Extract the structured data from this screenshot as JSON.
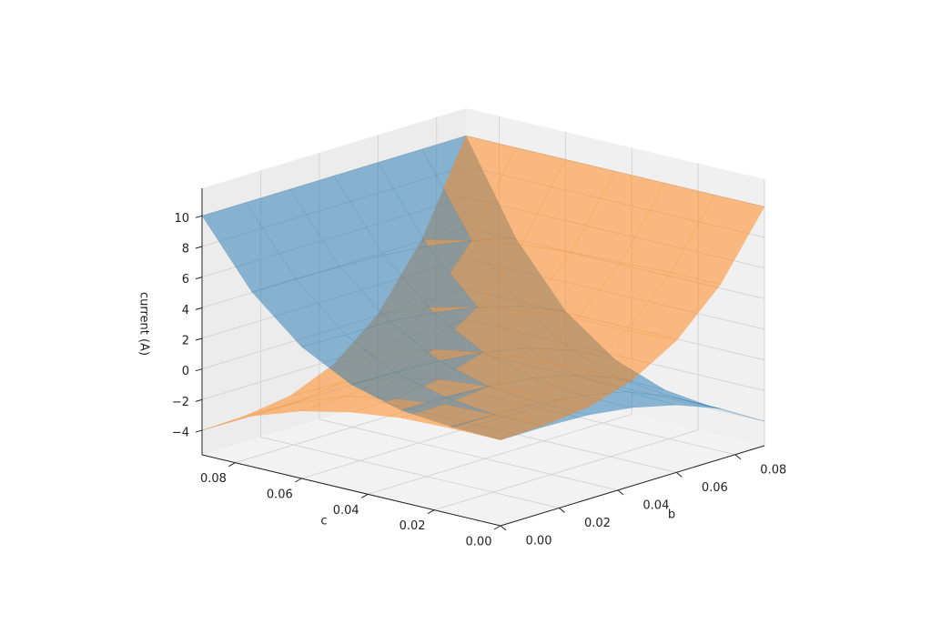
{
  "chart_data": {
    "type": "surface3d",
    "xlabel": "b",
    "ylabel": "c",
    "zlabel": "current (A)",
    "x": [
      0,
      0.015,
      0.03,
      0.045,
      0.06,
      0.075,
      0.09
    ],
    "y": [
      0,
      0.015,
      0.03,
      0.045,
      0.06,
      0.075,
      0.09
    ],
    "xlim": [
      0,
      0.09
    ],
    "ylim": [
      0,
      0.09
    ],
    "zlim": [
      -5.6,
      11.8
    ],
    "xticks": [
      {
        "value": 0,
        "label": "0.00"
      },
      {
        "value": 0.02,
        "label": "0.02"
      },
      {
        "value": 0.04,
        "label": "0.04"
      },
      {
        "value": 0.06,
        "label": "0.06"
      },
      {
        "value": 0.08,
        "label": "0.08"
      }
    ],
    "yticks": [
      {
        "value": 0,
        "label": "0.00"
      },
      {
        "value": 0.02,
        "label": "0.02"
      },
      {
        "value": 0.04,
        "label": "0.04"
      },
      {
        "value": 0.06,
        "label": "0.06"
      },
      {
        "value": 0.08,
        "label": "0.08"
      }
    ],
    "zticks": [
      {
        "value": -4,
        "label": "−4"
      },
      {
        "value": -2,
        "label": "−2"
      },
      0,
      2,
      4,
      6,
      8,
      10
    ],
    "grid": true,
    "series": [
      {
        "color": "#1f77b4",
        "values": [
          [
            0,
            0,
            -0.1,
            -0.5,
            -1.2,
            -2.3,
            -4
          ],
          [
            0.1,
            0,
            -0.1,
            -0.5,
            -1.1,
            -2.3,
            -3.9
          ],
          [
            0.4,
            0.4,
            0.2,
            -0.1,
            -0.8,
            -1.9,
            -3.5
          ],
          [
            1.3,
            1.2,
            1.1,
            0.8,
            0.2,
            -0.8,
            -2.3
          ],
          [
            3,
            2.9,
            2.9,
            2.6,
            2.1,
            1.3,
            0.1
          ],
          [
            5.8,
            5.8,
            5.7,
            5.6,
            5.3,
            4.8,
            4.1
          ],
          [
            10,
            10,
            10,
            10,
            10,
            10,
            10
          ]
        ]
      },
      {
        "color": "#ff7f0e",
        "values": [
          [
            0,
            0.1,
            0.4,
            1.3,
            3,
            5.8,
            10
          ],
          [
            0,
            0,
            0.4,
            1.2,
            2.9,
            5.8,
            10
          ],
          [
            -0.1,
            -0.1,
            0.2,
            1.1,
            2.9,
            5.7,
            10
          ],
          [
            -0.5,
            -0.5,
            -0.1,
            0.8,
            2.6,
            5.6,
            10
          ],
          [
            -1.2,
            -1.1,
            -0.8,
            0.2,
            2.1,
            5.3,
            10
          ],
          [
            -2.3,
            -2.3,
            -1.9,
            -0.8,
            1.3,
            4.8,
            10
          ],
          [
            -4,
            -3.9,
            -3.5,
            -2.3,
            0.1,
            4.1,
            10
          ]
        ]
      }
    ]
  }
}
